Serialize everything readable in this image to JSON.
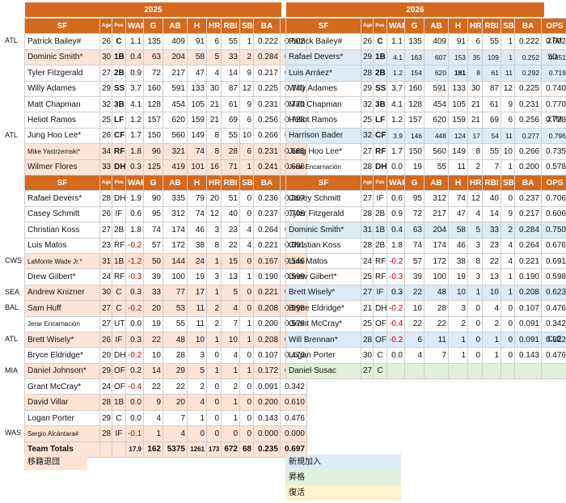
{
  "years": [
    "2025",
    "2026"
  ],
  "headers": [
    "SF",
    "Age",
    "Pos",
    "WAR",
    "G",
    "AB",
    "H",
    "HR",
    "RBI",
    "SB",
    "BA",
    "OPS"
  ],
  "t1": [
    {
      "s": "",
      "c": [
        "Patrick Bailey#",
        "26",
        "C",
        "1.1",
        "135",
        "409",
        "91",
        "6",
        "55",
        "1",
        "0.222",
        "0.602"
      ]
    },
    {
      "s": "out",
      "c": [
        "Dominic Smith*",
        "30",
        "1B",
        "0.4",
        "63",
        "204",
        "58",
        "5",
        "33",
        "2",
        "0.284",
        "0.750"
      ]
    },
    {
      "s": "",
      "c": [
        "Tyler Fitzgerald",
        "27",
        "2B",
        "0.9",
        "72",
        "217",
        "47",
        "4",
        "14",
        "9",
        "0.217",
        "0.606"
      ]
    },
    {
      "s": "",
      "c": [
        "Willy Adames",
        "29",
        "SS",
        "3.7",
        "160",
        "591",
        "133",
        "30",
        "87",
        "12",
        "0.225",
        "0.740"
      ]
    },
    {
      "s": "",
      "c": [
        "Matt Chapman",
        "32",
        "3B",
        "4.1",
        "128",
        "454",
        "105",
        "21",
        "61",
        "9",
        "0.231",
        "0.770"
      ]
    },
    {
      "s": "",
      "c": [
        "Heliot Ramos",
        "25",
        "LF",
        "1.2",
        "157",
        "620",
        "159",
        "21",
        "69",
        "6",
        "0.256",
        "0.728"
      ]
    },
    {
      "s": "",
      "c": [
        "Jung Hoo Lee*",
        "26",
        "CF",
        "1.7",
        "150",
        "560",
        "149",
        "8",
        "55",
        "10",
        "0.266",
        "0.735"
      ]
    },
    {
      "s": "out",
      "c": [
        "Mike Yastrzemski*",
        "34",
        "RF",
        "1.8",
        "96",
        "321",
        "74",
        "8",
        "28",
        "6",
        "0.231",
        "0.685"
      ]
    },
    {
      "s": "out",
      "c": [
        "Wilmer Flores",
        "33",
        "DH",
        "0.3",
        "125",
        "419",
        "101",
        "16",
        "71",
        "1",
        "0.241",
        "0.686"
      ]
    }
  ],
  "t2": [
    {
      "s": "",
      "c": [
        "Patrick Bailey#",
        "26",
        "C",
        "1.1",
        "135",
        "409",
        "91",
        "6",
        "55",
        "1",
        "0.222",
        "0.602"
      ]
    },
    {
      "s": "in",
      "c": [
        "Rafael Devers*",
        "29",
        "1B",
        "4.1",
        "163",
        "607",
        "153",
        "35",
        "109",
        "1",
        "0.252",
        "0.851"
      ]
    },
    {
      "s": "in",
      "c": [
        "Luis Arráez*",
        "28",
        "2B",
        "1.2",
        "154",
        "620",
        "181",
        "8",
        "61",
        "11",
        "0.292",
        "0.719"
      ]
    },
    {
      "s": "",
      "c": [
        "Willy Adames",
        "29",
        "SS",
        "3.7",
        "160",
        "591",
        "133",
        "30",
        "87",
        "12",
        "0.225",
        "0.740"
      ]
    },
    {
      "s": "",
      "c": [
        "Matt Chapman",
        "32",
        "3B",
        "4.1",
        "128",
        "454",
        "105",
        "21",
        "61",
        "9",
        "0.231",
        "0.770"
      ]
    },
    {
      "s": "",
      "c": [
        "Heliot Ramos",
        "25",
        "LF",
        "1.2",
        "157",
        "620",
        "159",
        "21",
        "69",
        "6",
        "0.256",
        "0.728"
      ]
    },
    {
      "s": "in",
      "c": [
        "Harrison Bader",
        "32",
        "CF",
        "3.9",
        "146",
        "448",
        "124",
        "17",
        "54",
        "11",
        "0.277",
        "0.796"
      ]
    },
    {
      "s": "",
      "c": [
        "Jung Hoo Lee*",
        "27",
        "RF",
        "1.7",
        "150",
        "560",
        "149",
        "8",
        "55",
        "10",
        "0.266",
        "0.735"
      ]
    },
    {
      "s": "",
      "c": [
        "Jerar Encarnación",
        "28",
        "DH",
        "0.0",
        "19",
        "55",
        "11",
        "2",
        "7",
        "1",
        "0.200",
        "0.578"
      ]
    }
  ],
  "t3": [
    {
      "s": "",
      "c": [
        "Rafael Devers*",
        "28",
        "DH",
        "1.9",
        "90",
        "335",
        "79",
        "20",
        "51",
        "0",
        "0.236",
        "0.807"
      ]
    },
    {
      "s": "",
      "c": [
        "Casey Schmitt",
        "26",
        "IF",
        "0.6",
        "95",
        "312",
        "74",
        "12",
        "40",
        "0",
        "0.237",
        "0.706"
      ]
    },
    {
      "s": "",
      "c": [
        "Christian Koss",
        "27",
        "2B",
        "1.8",
        "74",
        "174",
        "46",
        "3",
        "23",
        "4",
        "0.264",
        "0.676"
      ]
    },
    {
      "s": "",
      "c": [
        "Luis Matos",
        "23",
        "RF",
        "-0.2",
        "57",
        "172",
        "38",
        "8",
        "22",
        "4",
        "0.221",
        "0.691"
      ]
    },
    {
      "s": "out",
      "c": [
        "LaMonte Wade Jr.*",
        "31",
        "1B",
        "-1.2",
        "50",
        "144",
        "24",
        "1",
        "15",
        "0",
        "0.167",
        "0.546"
      ]
    },
    {
      "s": "",
      "c": [
        "Drew Gilbert*",
        "24",
        "RF",
        "-0.3",
        "39",
        "100",
        "19",
        "3",
        "13",
        "1",
        "0.190",
        "0.598"
      ]
    },
    {
      "s": "out",
      "c": [
        "Andrew Knizner",
        "30",
        "C",
        "0.3",
        "33",
        "77",
        "17",
        "1",
        "5",
        "0",
        "0.221",
        "0.598"
      ]
    },
    {
      "s": "out",
      "c": [
        "Sam Huff",
        "27",
        "C",
        "-0.2",
        "20",
        "53",
        "11",
        "2",
        "4",
        "0",
        "0.208",
        "0.598"
      ]
    },
    {
      "s": "",
      "c": [
        "Jerar Encarnación",
        "27",
        "UT",
        "0.0",
        "19",
        "55",
        "11",
        "2",
        "7",
        "1",
        "0.200",
        "0.578"
      ]
    },
    {
      "s": "out",
      "c": [
        "Brett Wisely*",
        "26",
        "IF",
        "0.3",
        "22",
        "48",
        "10",
        "1",
        "10",
        "1",
        "0.208",
        "0.623"
      ]
    },
    {
      "s": "",
      "c": [
        "Bryce Eldridge*",
        "20",
        "DH",
        "-0.2",
        "10",
        "28",
        "3",
        "0",
        "4",
        "0",
        "0.107",
        "0.476"
      ]
    },
    {
      "s": "out",
      "c": [
        "Daniel Johnson*",
        "29",
        "OF",
        "0.2",
        "14",
        "29",
        "5",
        "1",
        "1",
        "1",
        "0.172",
        "0.571"
      ]
    },
    {
      "s": "",
      "c": [
        "Grant McCray*",
        "24",
        "OF",
        "-0.4",
        "22",
        "22",
        "2",
        "0",
        "2",
        "0",
        "0.091",
        "0.342"
      ]
    },
    {
      "s": "out",
      "c": [
        "David Villar",
        "28",
        "1B",
        "0.0",
        "9",
        "20",
        "4",
        "0",
        "1",
        "0",
        "0.200",
        "0.610"
      ]
    },
    {
      "s": "",
      "c": [
        "Logan Porter",
        "29",
        "C",
        "0.0",
        "4",
        "7",
        "1",
        "0",
        "1",
        "0",
        "0.143",
        "0.476"
      ]
    },
    {
      "s": "out",
      "c": [
        "Sergio Alcántara#",
        "28",
        "IF",
        "-0.1",
        "1",
        "4",
        "0",
        "0",
        "0",
        "0",
        "0.000",
        "0.000"
      ]
    },
    {
      "s": "tot",
      "c": [
        "Team Totals",
        "",
        "",
        "17.9",
        "162",
        "5375",
        "1261",
        "173",
        "672",
        "68",
        "0.235",
        "0.697"
      ]
    }
  ],
  "t4": [
    {
      "s": "",
      "c": [
        "Casey Schmitt",
        "27",
        "IF",
        "0.6",
        "95",
        "312",
        "74",
        "12",
        "40",
        "0",
        "0.237",
        "0.706"
      ]
    },
    {
      "s": "",
      "c": [
        "Tyler Fitzgerald",
        "28",
        "2B",
        "0.9",
        "72",
        "217",
        "47",
        "4",
        "14",
        "9",
        "0.217",
        "0.606"
      ]
    },
    {
      "s": "in",
      "c": [
        "Dominic Smith*",
        "31",
        "1B",
        "0.4",
        "63",
        "204",
        "58",
        "5",
        "33",
        "2",
        "0.284",
        "0.750"
      ]
    },
    {
      "s": "",
      "c": [
        "Christian Koss",
        "28",
        "2B",
        "1.8",
        "74",
        "174",
        "46",
        "3",
        "23",
        "4",
        "0.264",
        "0.676"
      ]
    },
    {
      "s": "",
      "c": [
        "Luis Matos",
        "24",
        "RF",
        "-0.2",
        "57",
        "172",
        "38",
        "8",
        "22",
        "4",
        "0.221",
        "0.691"
      ]
    },
    {
      "s": "",
      "c": [
        "Drew Gilbert*",
        "25",
        "RF",
        "-0.3",
        "39",
        "100",
        "19",
        "3",
        "13",
        "1",
        "0.190",
        "0.598"
      ]
    },
    {
      "s": "in",
      "c": [
        "Brett Wisely*",
        "27",
        "IF",
        "0.3",
        "22",
        "48",
        "10",
        "1",
        "10",
        "1",
        "0.208",
        "0.623"
      ]
    },
    {
      "s": "",
      "c": [
        "Bryce Eldridge*",
        "21",
        "DH",
        "-0.2",
        "10",
        "28",
        "3",
        "0",
        "4",
        "0",
        "0.107",
        "0.476"
      ]
    },
    {
      "s": "",
      "c": [
        "Grant McCray*",
        "25",
        "OF",
        "-0.4",
        "22",
        "22",
        "2",
        "0",
        "2",
        "0",
        "0.091",
        "0.342"
      ]
    },
    {
      "s": "in",
      "c": [
        "Will Brennan*",
        "28",
        "OF",
        "-0.2",
        "6",
        "11",
        "1",
        "0",
        "1",
        "0",
        "0.091",
        "0.322"
      ]
    },
    {
      "s": "",
      "c": [
        "Logan Porter",
        "30",
        "C",
        "0.0",
        "4",
        "7",
        "1",
        "0",
        "1",
        "0",
        "0.143",
        "0.476"
      ]
    },
    {
      "s": "pro",
      "c": [
        "Daniel Susac",
        "27",
        "C",
        "",
        "",
        "",
        "",
        "",
        "",
        "",
        "",
        ""
      ]
    }
  ],
  "sides_left": [
    {
      "row": 2,
      "t": "ATL"
    },
    {
      "row": 8,
      "t": "ATL"
    },
    {
      "row": 16,
      "t": "CWS"
    },
    {
      "row": 18,
      "t": "SEA"
    },
    {
      "row": 19,
      "t": "BAL"
    },
    {
      "row": 21,
      "t": "ATL"
    },
    {
      "row": 23,
      "t": "MIA"
    },
    {
      "row": 27,
      "t": "WAS"
    }
  ],
  "sides_right": [
    {
      "row": 2,
      "t": "2TM"
    },
    {
      "row": 3,
      "t": "SD"
    },
    {
      "row": 7,
      "t": "2TM"
    },
    {
      "row": 21,
      "t": "CLE"
    }
  ],
  "legend": {
    "left": "移籍退団",
    "new": "新規加入",
    "promo": "昇格",
    "return": "復活"
  },
  "colors": {
    "header": "#d46a1e",
    "out": "#fce4d6",
    "new": "#ddebf7",
    "promo": "#e2efda",
    "return": "#fff2cc",
    "neg": "#c00000"
  }
}
